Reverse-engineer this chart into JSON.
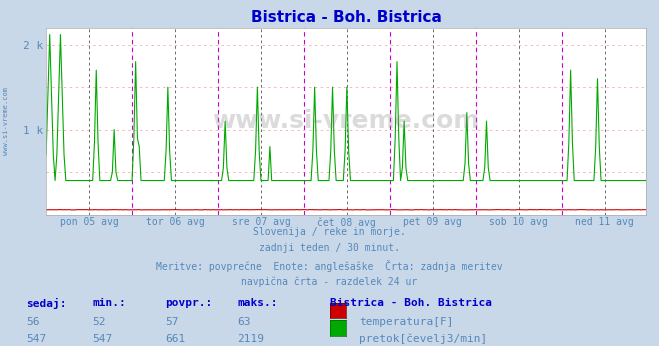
{
  "title": "Bistrica - Boh. Bistrica",
  "title_color": "#0000cc",
  "outer_bg": "#c8d8e8",
  "plot_bg": "#ffffff",
  "grid_color_h": "#ffaaaa",
  "vline_color_day": "#cc00cc",
  "vline_color_half": "#000000",
  "watermark": "www.si-vreme.com",
  "xlabel_days": [
    "pon 05 avg",
    "tor 06 avg",
    "sre 07 avg",
    "čet 08 avg",
    "pet 09 avg",
    "sob 10 avg",
    "ned 11 avg"
  ],
  "subtitle_lines": [
    "Slovenija / reke in morje.",
    "zadnji teden / 30 minut.",
    "Meritve: povprečne  Enote: anglešaške  Črta: zadnja meritev",
    "navpična črta - razdelek 24 ur"
  ],
  "table_headers": [
    "sedaj:",
    "min.:",
    "povpr.:",
    "maks.:"
  ],
  "table_row1": [
    "56",
    "52",
    "57",
    "63"
  ],
  "table_row2": [
    "547",
    "547",
    "661",
    "2119"
  ],
  "legend_title": "Bistrica - Boh. Bistrica",
  "legend_row1": "temperatura[F]",
  "legend_row2": "pretok[čevelj3/min]",
  "temp_color": "#cc0000",
  "flow_color": "#00aa00",
  "axis_label_color": "#5588bb",
  "header_color": "#0000cc",
  "text_color": "#5588bb",
  "ylim_max": 2200,
  "n_points": 336,
  "n_days": 7,
  "pts_per_day": 48
}
